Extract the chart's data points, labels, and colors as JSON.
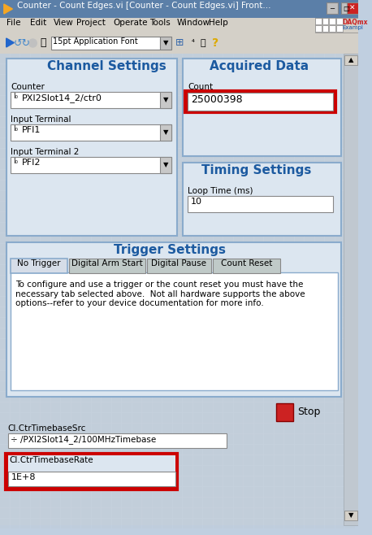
{
  "title_bar_text": "Counter - Count Edges.vi [Counter - Count Edges.vi] Front...",
  "title_bar_bg": "#6a8caf",
  "title_bar_icon_color": "#f5a623",
  "menu_items": [
    "File",
    "Edit",
    "View",
    "Project",
    "Operate",
    "Tools",
    "Window",
    "Help"
  ],
  "menu_bg": "#d4d0c8",
  "toolbar_bg": "#d4d0c8",
  "font_dropdown": "15pt Application Font",
  "main_bg": "#c0cfe0",
  "panel_bg": "#d6dde8",
  "section_bg": "#dce3ec",
  "channel_settings_title": "Channel Settings",
  "channel_settings_title_color": "#1c5aa0",
  "acquired_data_title": "Acquired Data",
  "acquired_data_title_color": "#1c5aa0",
  "counter_label": "Counter",
  "counter_value": "PXI2Slot14_2/ctr0",
  "input_terminal_label": "Input Terminal",
  "input_terminal_value": "PFI1",
  "input_terminal2_label": "Input Terminal 2",
  "input_terminal2_value": "PFI2",
  "count_label": "Count",
  "count_value": "25000398",
  "count_box_border": "#cc0000",
  "timing_settings_title": "Timing Settings",
  "timing_settings_title_color": "#1c5aa0",
  "loop_time_label": "Loop Time (ms)",
  "loop_time_value": "10",
  "trigger_settings_title": "Trigger Settings",
  "trigger_settings_title_color": "#1c5aa0",
  "tab_labels": [
    "No Trigger",
    "Digital Arm Start",
    "Digital Pause",
    "Count Reset"
  ],
  "trigger_text": "To configure and use a trigger or the count reset you must have the\nnecessary tab selected above.  Not all hardware supports the above\noptions--refer to your device documentation for more info.",
  "ci_timebase_src_label": "CI.CtrTimebaseSrc",
  "ci_timebase_src_value": "÷ /PXI2Slot14_2/100MHzTimebase",
  "ci_timebase_rate_label": "CI.CtrTimebaseRate",
  "ci_timebase_rate_value": "1E+8",
  "ci_timebase_rate_border": "#cc0000",
  "stop_button_color": "#cc0000",
  "stop_label": "Stop",
  "scrollbar_color": "#a0a8b0",
  "white": "#ffffff",
  "light_gray": "#d4d0c8",
  "mid_gray": "#c0c0c0",
  "dark_gray": "#808080",
  "border_blue": "#6a8caf",
  "field_bg": "#ffffff",
  "tab_selected_bg": "#d6dde8",
  "tab_bg": "#c0cac8"
}
